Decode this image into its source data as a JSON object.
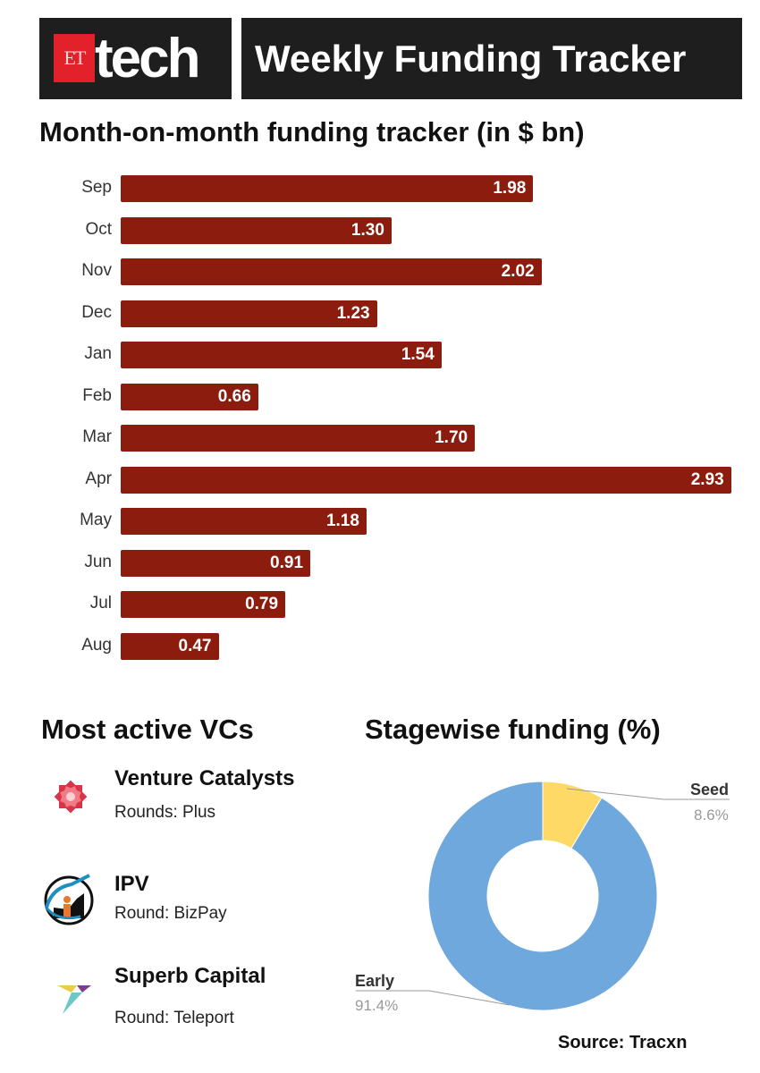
{
  "header": {
    "logo_et": "ET",
    "logo_tech": "tech",
    "title": "Weekly Funding Tracker"
  },
  "chart_data": [
    {
      "type": "bar",
      "orientation": "horizontal",
      "title": "Month-on-month funding tracker (in $ bn)",
      "categories": [
        "Sep",
        "Oct",
        "Nov",
        "Dec",
        "Jan",
        "Feb",
        "Mar",
        "Apr",
        "May",
        "Jun",
        "Jul",
        "Aug"
      ],
      "values": [
        1.98,
        1.3,
        2.02,
        1.23,
        1.54,
        0.66,
        1.7,
        2.93,
        1.18,
        0.91,
        0.79,
        0.47
      ],
      "value_labels": [
        "1.98",
        "1.30",
        "2.02",
        "1.23",
        "1.54",
        "0.66",
        "1.70",
        "2.93",
        "1.18",
        "0.91",
        "0.79",
        "0.47"
      ],
      "color": "#8b1c0e",
      "grid": false
    },
    {
      "type": "pie",
      "donut": true,
      "title": "Stagewise funding (%)",
      "slices": [
        {
          "label": "Seed",
          "value": 8.6,
          "pct": "8.6%",
          "color": "#ffd966"
        },
        {
          "label": "Early",
          "value": 91.4,
          "pct": "91.4%",
          "color": "#6fa8dc"
        }
      ]
    }
  ],
  "vcs": {
    "title": "Most active VCs",
    "items": [
      {
        "name": "Venture Catalysts",
        "round": "Rounds: Plus",
        "icon": "flower-logo-icon"
      },
      {
        "name": "IPV",
        "round": "Round: BizPay",
        "icon": "ipv-logo-icon"
      },
      {
        "name": "Superb Capital",
        "round": "Round: Teleport",
        "icon": "arrow-logo-icon"
      }
    ]
  },
  "source": "Source: Tracxn"
}
